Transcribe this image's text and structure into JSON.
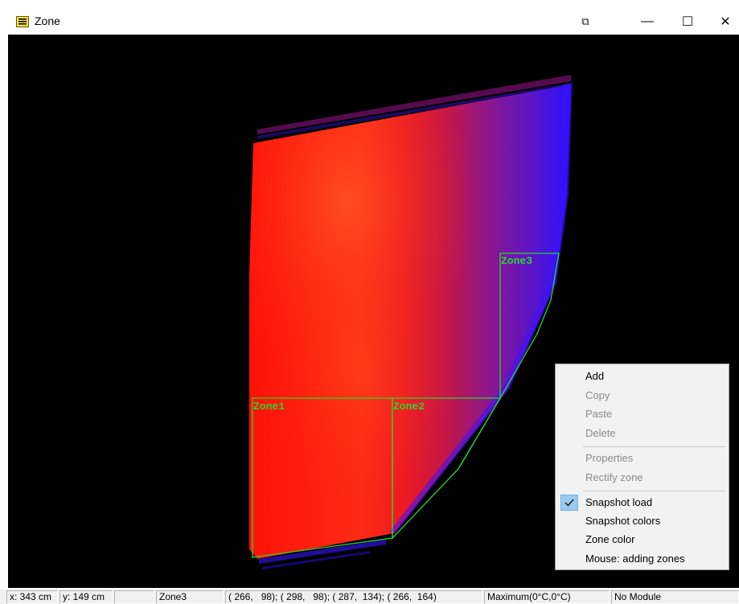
{
  "window": {
    "title": "Zone",
    "controls": {
      "extra": "⧉",
      "minimize": "—",
      "maximize": "☐",
      "close": "✕"
    }
  },
  "zones": [
    {
      "label": "Zone1",
      "color": "#29d62f"
    },
    {
      "label": "Zone2",
      "color": "#29d62f"
    },
    {
      "label": "Zone3",
      "color": "#29d62f"
    }
  ],
  "context_menu": {
    "items": [
      {
        "label": "Add",
        "enabled": true
      },
      {
        "label": "Copy",
        "enabled": false
      },
      {
        "label": "Paste",
        "enabled": false
      },
      {
        "label": "Delete",
        "enabled": false
      },
      {
        "label": "Properties",
        "enabled": false
      },
      {
        "label": "Rectify zone",
        "enabled": false
      },
      {
        "label": "Snapshot load",
        "enabled": true,
        "checked": true
      },
      {
        "label": "Snapshot colors",
        "enabled": true
      },
      {
        "label": "Zone color",
        "enabled": true
      },
      {
        "label": "Mouse: adding zones",
        "enabled": true
      }
    ]
  },
  "status_bar": {
    "x": "x: 343 cm",
    "y": "y: 149 cm",
    "empty": "",
    "zone": "Zone3",
    "points": "( 266,   98); ( 298,   98); ( 287,  134); ( 266,  164)",
    "maximum": "Maximum(0°C,0°C)",
    "module": "No Module"
  },
  "colors": {
    "zone_outline": "#29d62f",
    "background": "#000000",
    "hot": "#ff1a10",
    "cold": "#2a10ff"
  }
}
